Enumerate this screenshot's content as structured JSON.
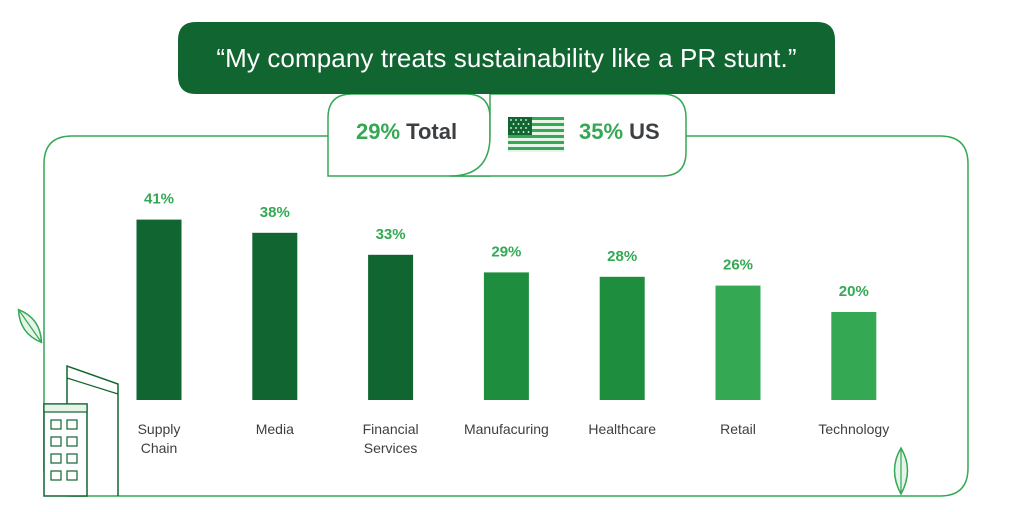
{
  "banner": {
    "quote": "“My company treats sustainability like a PR stunt.”"
  },
  "stats": {
    "total": {
      "value": "29%",
      "label": "Total"
    },
    "us": {
      "value": "35%",
      "label": "US",
      "flag_icon": "us-flag-icon"
    }
  },
  "colors": {
    "banner_bg": "#116530",
    "dark_green": "#116530",
    "mid_green": "#1e8e3e",
    "light_green": "#34a853",
    "outline": "#34a853",
    "text": "#3c4043"
  },
  "chart_data": {
    "type": "bar",
    "title": "",
    "xlabel": "",
    "ylabel": "",
    "ylim": [
      0,
      50
    ],
    "grid": false,
    "categories": [
      [
        "Supply",
        "Chain"
      ],
      [
        "Media"
      ],
      [
        "Financial",
        "Services"
      ],
      [
        "Manufacuring"
      ],
      [
        "Healthcare"
      ],
      [
        "Retail"
      ],
      [
        "Technology"
      ]
    ],
    "values": [
      41,
      38,
      33,
      29,
      28,
      26,
      20
    ],
    "value_labels": [
      "41%",
      "38%",
      "33%",
      "29%",
      "28%",
      "26%",
      "20%"
    ],
    "bar_colors": [
      "#116530",
      "#116530",
      "#116530",
      "#1e8e3e",
      "#1e8e3e",
      "#34a853",
      "#34a853"
    ]
  }
}
